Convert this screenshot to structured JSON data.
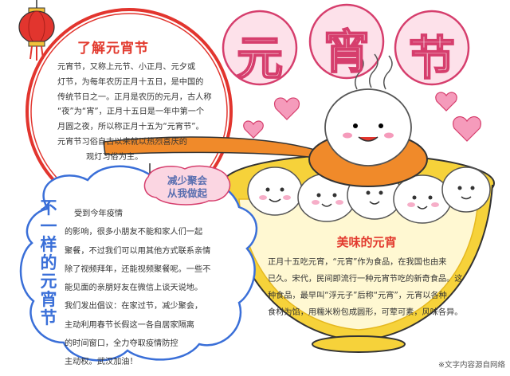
{
  "title_chars": [
    "元",
    "宵",
    "节"
  ],
  "about": {
    "title": "了解元宵节",
    "lines": [
      "元宵节，又称上元节、小正月、元夕或",
      "灯节，为每年农历正月十五日，是中国的",
      "传统节日之一。正月是农历的元月，古人称",
      "“夜”为“宵”，正月十五日是一年中第一个",
      "月圆之夜，所以称正月十五为“元宵节”。",
      "元宵节习俗自古以来就以热烈喜庆的",
      "观灯习俗为主。"
    ]
  },
  "note": {
    "lines": [
      "减少聚会",
      "从我做起"
    ]
  },
  "different": {
    "title": "不一样的元宵节",
    "lines": [
      "受到今年疫情",
      "的影响，很多小朋友不能和家人们一起",
      "聚餐，不过我们可以用其他方式联系亲情",
      "除了视频拜年，还能视频聚餐呢。一些不",
      "能见面的亲朋好友在微信上谈天说地。",
      "我们发出倡议：在家过节，减少聚会，",
      "主动利用春节长假这一各自居家隔离",
      "的时间窗口，全力夺取疫情防控",
      "主动权。武汉加油！"
    ]
  },
  "tasty": {
    "title": "美味的元宵",
    "lines": [
      "正月十五吃元宵，“元宵”作为食品，在我国也由来",
      "已久。宋代，民间即流行一种元宵节吃的新奇食品。这",
      "种食品，最早叫“浮元子”后称“元宵”，元宵以各种",
      "食材为馅，用糯米粉包成圆形，可荤可素，风味各异。"
    ]
  },
  "credit": "※文字内容源自网络",
  "colors": {
    "title_outline": "#d63e6d",
    "red_title": "#e23a2e",
    "blue_title": "#3a6fd8",
    "bowl_yellow": "#f6d23a",
    "spoon_orange": "#f08a2a",
    "heart_pink": "#f59bbb",
    "lantern_red": "#e2352e"
  }
}
